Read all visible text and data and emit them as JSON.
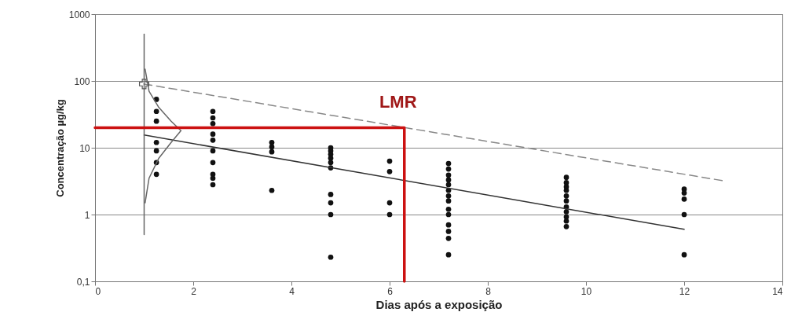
{
  "chart_data": {
    "type": "scatter",
    "xlabel": "Dias após a exposição",
    "ylabel": "Concentração µg/kg",
    "log": true,
    "grid": "y",
    "xlim": [
      0,
      14
    ],
    "xticks": [
      0,
      2,
      4,
      6,
      8,
      10,
      12,
      14
    ],
    "ylim": [
      0.1,
      1000
    ],
    "yticks": [
      {
        "value": 0.1,
        "label": "0,1"
      },
      1,
      10,
      100,
      1000
    ],
    "annotations": [
      {
        "text": "LMR",
        "x": 6.3,
        "y": 20
      }
    ],
    "series": [
      {
        "type": "scatter",
        "marker": "circle",
        "color": "#111111",
        "x": [
          1.25,
          1.25,
          1.25,
          1.25,
          1.25,
          1.25,
          1.25,
          2.4,
          2.4,
          2.4,
          2.4,
          2.4,
          2.4,
          2.4,
          2.4,
          2.4,
          2.4,
          3.6,
          3.6,
          3.6,
          3.6,
          4.8,
          4.8,
          4.8,
          4.8,
          4.8,
          4.8,
          4.8,
          4.8,
          4.8,
          4.8,
          6,
          6,
          6,
          6,
          7.2,
          7.2,
          7.2,
          7.2,
          7.2,
          7.2,
          7.2,
          7.2,
          7.2,
          7.2,
          7.2,
          7.2,
          7.2,
          7.2,
          9.6,
          9.6,
          9.6,
          9.6,
          9.6,
          9.6,
          9.6,
          9.6,
          9.6,
          9.6,
          9.6,
          12,
          12,
          12,
          12,
          12
        ],
        "values": [
          53,
          35,
          25,
          12,
          9,
          6,
          4,
          35,
          28,
          23,
          16,
          13,
          9,
          6,
          4,
          3.5,
          2.8,
          12,
          10.3,
          8.7,
          2.3,
          10,
          9,
          8,
          7,
          6,
          5,
          2,
          1.5,
          1,
          0.23,
          6.3,
          4.4,
          1.5,
          1,
          5.8,
          4.8,
          3.9,
          3.3,
          2.8,
          2.3,
          1.9,
          1.6,
          1.2,
          1,
          0.7,
          0.56,
          0.44,
          0.25,
          3.6,
          3,
          2.6,
          2.3,
          1.9,
          1.6,
          1.3,
          1.1,
          0.92,
          0.8,
          0.66,
          2.4,
          2.1,
          1.7,
          1,
          0.25
        ]
      },
      {
        "type": "line",
        "color": "#333333",
        "line_style": "solid",
        "x": [
          1,
          12
        ],
        "values": [
          15.5,
          0.6
        ]
      },
      {
        "type": "line",
        "color": "#888888",
        "line_style": "dashed",
        "x": [
          1,
          12.8
        ],
        "values": [
          90,
          3.2
        ]
      },
      {
        "type": "line",
        "color": "#666666",
        "line_style": "solid",
        "x": [
          1,
          1
        ],
        "values": [
          0.5,
          500
        ]
      },
      {
        "type": "line",
        "color": "#666666",
        "line_style": "solid",
        "x": [
          1.02,
          1.1,
          1.3,
          1.55,
          1.75,
          1.55,
          1.3,
          1.1,
          1.02
        ],
        "values": [
          150,
          70,
          40,
          25,
          18,
          12,
          7,
          3.5,
          1.5
        ]
      },
      {
        "marker": "cross",
        "color": "#555555",
        "x": [
          1
        ],
        "values": [
          90
        ]
      },
      {
        "type": "line",
        "color": "#cc1111",
        "line_style": "solid",
        "x": [
          0,
          6.3,
          6.3
        ],
        "values": [
          20,
          20,
          0.1
        ]
      }
    ]
  }
}
